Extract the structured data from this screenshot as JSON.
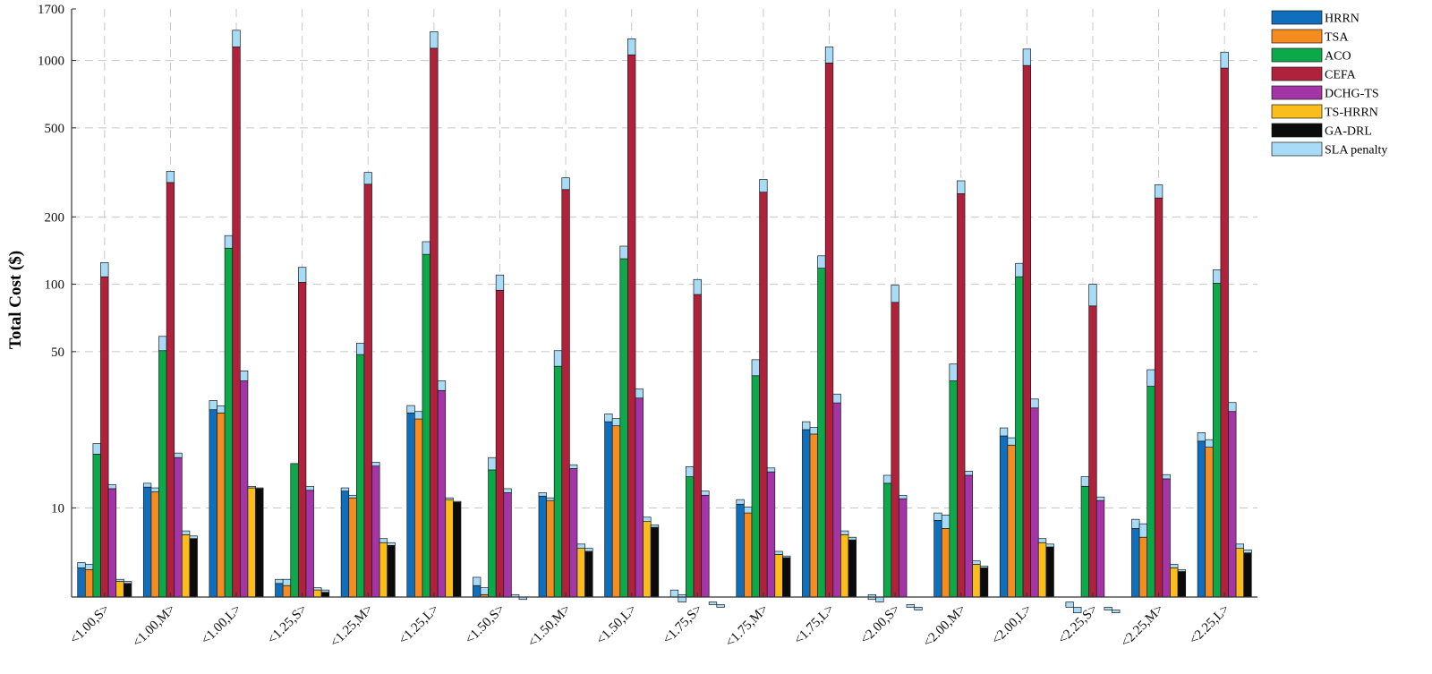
{
  "chart_data": {
    "type": "bar",
    "stacked_component": "SLA penalty",
    "ylabel": "Total Cost ($)",
    "xlabel": "",
    "yscale": "log",
    "ylim": [
      4,
      1700
    ],
    "yticks": [
      10,
      50,
      100,
      200,
      500,
      1000,
      1700
    ],
    "ytick_labels": [
      "10",
      "50",
      "100",
      "200",
      "500",
      "1000",
      "1700"
    ],
    "grid": true,
    "legend_position": "top-right",
    "categories": [
      "<1.00,S>",
      "<1.00,M>",
      "<1.00,L>",
      "<1.25,S>",
      "<1.25,M>",
      "<1.25,L>",
      "<1.50,S>",
      "<1.50,M>",
      "<1.50,L>",
      "<1.75,S>",
      "<1.75,M>",
      "<1.75,L>",
      "<2.00,S>",
      "<2.00,M>",
      "<2.00,L>",
      "<2.25,S>",
      "<2.25,M>",
      "<2.25,L>"
    ],
    "series": [
      {
        "name": "HRRN",
        "color": "#0f6fbd",
        "base": [
          5.4,
          12.4,
          27.5,
          4.6,
          11.9,
          26.6,
          4.5,
          11.3,
          24.3,
          4.0,
          10.4,
          22.4,
          3.9,
          8.8,
          21.0,
          3.6,
          8.1,
          19.9
        ],
        "sla": [
          0.3,
          0.5,
          2.7,
          0.2,
          0.4,
          2.1,
          0.4,
          0.4,
          2.0,
          0.3,
          0.5,
          1.9,
          0.2,
          0.7,
          1.8,
          0.2,
          0.8,
          1.8
        ]
      },
      {
        "name": "TSA",
        "color": "#f68b1f",
        "base": [
          5.3,
          11.8,
          26.6,
          4.5,
          11.1,
          25.0,
          4.1,
          10.8,
          23.3,
          3.8,
          9.5,
          21.4,
          3.8,
          8.1,
          19.1,
          3.4,
          7.4,
          18.7
        ],
        "sla": [
          0.3,
          0.5,
          2.0,
          0.3,
          0.3,
          2.0,
          0.3,
          0.3,
          1.8,
          0.3,
          0.6,
          1.5,
          0.2,
          1.2,
          1.5,
          0.2,
          1.1,
          1.5
        ]
      },
      {
        "name": "ACO",
        "color": "#0ca94a",
        "base": [
          17.4,
          50.5,
          145.0,
          15.8,
          48.5,
          136.0,
          14.8,
          43.0,
          130.0,
          13.8,
          39.0,
          118.0,
          12.9,
          37.0,
          108.0,
          12.5,
          35.0,
          101.0
        ],
        "sla": [
          2.0,
          8.0,
          20.0,
          0.0,
          6.0,
          19.0,
          2.0,
          7.5,
          18.0,
          1.5,
          7.0,
          16.0,
          1.1,
          7.0,
          16.0,
          1.3,
          6.5,
          15.0
        ]
      },
      {
        "name": "CEFA",
        "color": "#b0213c",
        "base": [
          108.0,
          285.0,
          1150.0,
          102.0,
          280.0,
          1135.0,
          94.0,
          265.0,
          1060.0,
          90.0,
          258.0,
          975.0,
          83.0,
          254.0,
          950.0,
          80.0,
          243.0,
          925.0
        ],
        "sla": [
          17.0,
          35.0,
          215.0,
          17.0,
          36.0,
          210.0,
          16.0,
          34.0,
          190.0,
          15.0,
          36.0,
          175.0,
          16.0,
          36.0,
          175.0,
          20.0,
          35.0,
          165.0
        ]
      },
      {
        "name": "DCHG-TS",
        "color": "#a435a6",
        "base": [
          12.2,
          16.8,
          37.0,
          12.0,
          15.4,
          33.5,
          11.7,
          15.0,
          31.0,
          11.4,
          14.5,
          29.5,
          11.0,
          14.0,
          28.0,
          10.8,
          13.5,
          27.0
        ],
        "sla": [
          0.5,
          0.8,
          4.0,
          0.5,
          0.6,
          3.5,
          0.5,
          0.6,
          3.0,
          0.5,
          0.6,
          2.8,
          0.4,
          0.6,
          2.7,
          0.4,
          0.6,
          2.6
        ]
      },
      {
        "name": "TS-HRRN",
        "color": "#fbbd1a",
        "base": [
          4.7,
          7.6,
          12.3,
          4.3,
          7.0,
          10.9,
          4.0,
          6.6,
          8.7,
          3.7,
          6.2,
          7.6,
          3.6,
          5.6,
          7.0,
          3.5,
          5.4,
          6.6
        ],
        "sla": [
          0.1,
          0.3,
          0.2,
          0.1,
          0.3,
          0.2,
          0.1,
          0.3,
          0.4,
          0.1,
          0.2,
          0.3,
          0.1,
          0.2,
          0.3,
          0.1,
          0.2,
          0.3
        ]
      },
      {
        "name": "GA-DRL",
        "color": "#0b0b0b",
        "base": [
          4.6,
          7.3,
          12.2,
          4.2,
          6.8,
          10.6,
          3.9,
          6.4,
          8.2,
          3.6,
          6.0,
          7.2,
          3.5,
          5.4,
          6.7,
          3.4,
          5.2,
          6.3
        ],
        "sla": [
          0.1,
          0.2,
          0.1,
          0.1,
          0.2,
          0.1,
          0.1,
          0.2,
          0.2,
          0.1,
          0.1,
          0.2,
          0.1,
          0.1,
          0.2,
          0.1,
          0.1,
          0.2
        ]
      }
    ],
    "sla_color": "#a8dcf6",
    "legend": [
      "HRRN",
      "TSA",
      "ACO",
      "CEFA",
      "DCHG-TS",
      "TS-HRRN",
      "GA-DRL",
      "SLA penalty"
    ]
  }
}
